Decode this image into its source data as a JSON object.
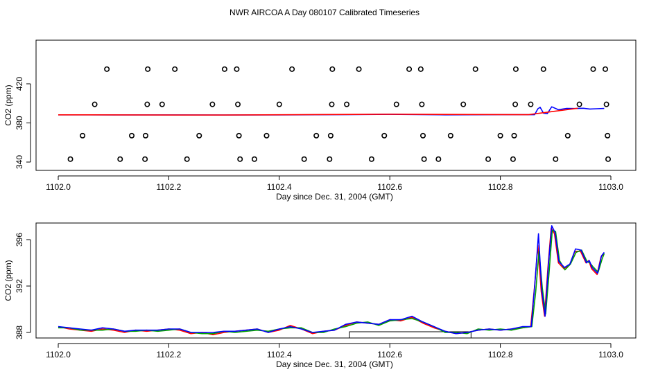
{
  "figure": {
    "title": "NWR AIRCOA A  Day 080107  Calibrated Timeseries"
  },
  "chart_data": [
    {
      "type": "scatter",
      "xlabel": "Day since Dec. 31, 2004 (GMT)",
      "ylabel": "CO2 (ppm)",
      "xlim": [
        1102.0,
        1103.0
      ],
      "ylim": [
        340,
        440
      ],
      "xticks": [
        1102.0,
        1102.2,
        1102.4,
        1102.6,
        1102.8,
        1103.0
      ],
      "xtick_labels": [
        "1102.0",
        "1102.2",
        "1102.4",
        "1102.6",
        "1102.8",
        "1103.0"
      ],
      "yticks": [
        340,
        380,
        420
      ],
      "ytick_labels": [
        "340",
        "380",
        "420"
      ],
      "grid": false,
      "legend": "none",
      "points_groups": [
        {
          "marker": "open-circle",
          "color": "#000000",
          "points": [
            [
              1102.088,
              435
            ],
            [
              1102.162,
              435
            ],
            [
              1102.211,
              435
            ],
            [
              1102.301,
              435
            ],
            [
              1102.323,
              435
            ],
            [
              1102.423,
              435
            ],
            [
              1102.496,
              435
            ],
            [
              1102.544,
              435
            ],
            [
              1102.635,
              435
            ],
            [
              1102.656,
              435
            ],
            [
              1102.755,
              435
            ],
            [
              1102.828,
              435
            ],
            [
              1102.878,
              435
            ],
            [
              1102.968,
              435
            ],
            [
              1102.99,
              435
            ],
            [
              1102.066,
              399
            ],
            [
              1102.161,
              399
            ],
            [
              1102.188,
              399
            ],
            [
              1102.279,
              399
            ],
            [
              1102.325,
              399
            ],
            [
              1102.4,
              399
            ],
            [
              1102.495,
              399
            ],
            [
              1102.522,
              399
            ],
            [
              1102.612,
              399
            ],
            [
              1102.658,
              399
            ],
            [
              1102.733,
              399
            ],
            [
              1102.827,
              399
            ],
            [
              1102.855,
              399
            ],
            [
              1102.943,
              399
            ],
            [
              1102.992,
              399
            ],
            [
              1102.044,
              367
            ],
            [
              1102.133,
              367
            ],
            [
              1102.158,
              367
            ],
            [
              1102.255,
              367
            ],
            [
              1102.327,
              367
            ],
            [
              1102.377,
              367
            ],
            [
              1102.467,
              367
            ],
            [
              1102.493,
              367
            ],
            [
              1102.59,
              367
            ],
            [
              1102.66,
              367
            ],
            [
              1102.71,
              367
            ],
            [
              1102.8,
              367
            ],
            [
              1102.825,
              367
            ],
            [
              1102.922,
              367
            ],
            [
              1102.994,
              367
            ],
            [
              1102.022,
              343
            ],
            [
              1102.112,
              343
            ],
            [
              1102.157,
              343
            ],
            [
              1102.233,
              343
            ],
            [
              1102.329,
              343
            ],
            [
              1102.355,
              343
            ],
            [
              1102.445,
              343
            ],
            [
              1102.491,
              343
            ],
            [
              1102.567,
              343
            ],
            [
              1102.662,
              343
            ],
            [
              1102.688,
              343
            ],
            [
              1102.778,
              343
            ],
            [
              1102.823,
              343
            ],
            [
              1102.9,
              343
            ],
            [
              1102.995,
              343
            ]
          ]
        }
      ],
      "series": [
        {
          "color": "#0000ff",
          "x": [
            1102.0,
            1102.1,
            1102.2,
            1102.3,
            1102.4,
            1102.5,
            1102.6,
            1102.7,
            1102.8,
            1102.862,
            1102.868,
            1102.872,
            1102.878,
            1102.885,
            1102.893,
            1102.905,
            1102.92,
            1102.935,
            1102.95,
            1102.962,
            1102.975,
            1102.988
          ],
          "y": [
            388.3,
            388.2,
            388.2,
            388.1,
            388.2,
            388.4,
            388.8,
            388.3,
            388.4,
            388.4,
            394.5,
            396.0,
            390.0,
            389.5,
            396.5,
            393.5,
            394.8,
            394.7,
            395.0,
            394.2,
            394.5,
            394.8
          ]
        },
        {
          "color": "#ff0000",
          "x": [
            1102.0,
            1102.3,
            1102.6,
            1102.85,
            1102.94
          ],
          "y": [
            388.3,
            388.1,
            388.9,
            388.4,
            395.0
          ]
        }
      ]
    },
    {
      "type": "line",
      "xlabel": "Day since Dec. 31, 2004 (GMT)",
      "ylabel": "CO2 (ppm)",
      "xlim": [
        1102.0,
        1103.0
      ],
      "ylim": [
        387.5,
        397.5
      ],
      "xticks": [
        1102.0,
        1102.2,
        1102.4,
        1102.6,
        1102.8,
        1103.0
      ],
      "xtick_labels": [
        "1102.0",
        "1102.2",
        "1102.4",
        "1102.6",
        "1102.8",
        "1103.0"
      ],
      "yticks": [
        388,
        392,
        396
      ],
      "ytick_labels": [
        "388",
        "392",
        "396"
      ],
      "grid": false,
      "legend": "none",
      "bracket": {
        "x0": 1102.527,
        "x1": 1102.747,
        "y": 387.55,
        "h": 0.1
      },
      "series": [
        {
          "color": "#ff0000",
          "x": [
            1102.0,
            1102.02,
            1102.04,
            1102.06,
            1102.08,
            1102.1,
            1102.12,
            1102.14,
            1102.16,
            1102.18,
            1102.2,
            1102.22,
            1102.24,
            1102.26,
            1102.28,
            1102.3,
            1102.32,
            1102.34,
            1102.36,
            1102.38,
            1102.4,
            1102.42,
            1102.44,
            1102.46,
            1102.48,
            1102.5,
            1102.52,
            1102.54,
            1102.56,
            1102.58,
            1102.6,
            1102.62,
            1102.64,
            1102.66,
            1102.68,
            1102.7,
            1102.72,
            1102.74,
            1102.76,
            1102.78,
            1102.8,
            1102.82,
            1102.84,
            1102.855,
            1102.862,
            1102.868,
            1102.874,
            1102.88,
            1102.886,
            1102.892,
            1102.898,
            1102.905,
            1102.915,
            1102.925,
            1102.935,
            1102.945,
            1102.955,
            1102.96,
            1102.965,
            1102.975,
            1102.982,
            1102.988
          ],
          "y": [
            388.5,
            388.3,
            388.2,
            388.1,
            388.3,
            388.2,
            388.0,
            388.2,
            388.1,
            388.2,
            388.3,
            388.2,
            387.9,
            388.0,
            387.8,
            388.0,
            388.1,
            388.2,
            388.3,
            388.0,
            388.2,
            388.6,
            388.3,
            387.9,
            388.1,
            388.2,
            388.6,
            388.9,
            388.8,
            388.7,
            389.1,
            389.0,
            389.3,
            388.8,
            388.4,
            388.1,
            387.9,
            388.0,
            388.2,
            388.3,
            388.2,
            388.3,
            388.4,
            388.5,
            392.0,
            395.5,
            391.5,
            389.4,
            393.5,
            397.0,
            396.5,
            394.0,
            393.5,
            393.8,
            395.0,
            395.0,
            394.0,
            394.2,
            393.5,
            393.0,
            394.5,
            394.8
          ]
        },
        {
          "color": "#00a000",
          "x": [
            1102.0,
            1102.02,
            1102.04,
            1102.06,
            1102.08,
            1102.1,
            1102.12,
            1102.14,
            1102.16,
            1102.18,
            1102.2,
            1102.22,
            1102.24,
            1102.26,
            1102.28,
            1102.3,
            1102.32,
            1102.34,
            1102.36,
            1102.38,
            1102.4,
            1102.42,
            1102.44,
            1102.46,
            1102.48,
            1102.5,
            1102.52,
            1102.54,
            1102.56,
            1102.58,
            1102.6,
            1102.62,
            1102.64,
            1102.66,
            1102.68,
            1102.7,
            1102.72,
            1102.74,
            1102.76,
            1102.78,
            1102.8,
            1102.82,
            1102.84,
            1102.857,
            1102.864,
            1102.87,
            1102.876,
            1102.882,
            1102.888,
            1102.894,
            1102.9,
            1102.907,
            1102.917,
            1102.927,
            1102.937,
            1102.947,
            1102.957,
            1102.962,
            1102.967,
            1102.977,
            1102.984,
            1102.988
          ],
          "y": [
            388.4,
            388.4,
            388.2,
            388.2,
            388.2,
            388.3,
            388.1,
            388.1,
            388.2,
            388.1,
            388.2,
            388.3,
            388.0,
            387.9,
            387.9,
            388.1,
            388.0,
            388.1,
            388.2,
            388.1,
            388.3,
            388.4,
            388.4,
            388.0,
            388.0,
            388.3,
            388.5,
            388.8,
            388.9,
            388.6,
            389.0,
            389.1,
            389.2,
            388.9,
            388.5,
            388.0,
            388.0,
            387.9,
            388.3,
            388.2,
            388.3,
            388.2,
            388.4,
            388.5,
            391.5,
            395.0,
            391.8,
            389.6,
            393.0,
            396.8,
            396.7,
            394.2,
            393.4,
            393.9,
            394.9,
            395.1,
            394.1,
            394.0,
            393.7,
            393.2,
            394.3,
            394.8
          ]
        },
        {
          "color": "#0000ff",
          "x": [
            1102.0,
            1102.02,
            1102.04,
            1102.06,
            1102.08,
            1102.1,
            1102.12,
            1102.14,
            1102.16,
            1102.18,
            1102.2,
            1102.22,
            1102.24,
            1102.26,
            1102.28,
            1102.3,
            1102.32,
            1102.34,
            1102.36,
            1102.38,
            1102.4,
            1102.42,
            1102.44,
            1102.46,
            1102.48,
            1102.5,
            1102.52,
            1102.54,
            1102.56,
            1102.58,
            1102.6,
            1102.62,
            1102.64,
            1102.66,
            1102.68,
            1102.7,
            1102.72,
            1102.74,
            1102.76,
            1102.78,
            1102.8,
            1102.82,
            1102.84,
            1102.856,
            1102.863,
            1102.869,
            1102.875,
            1102.881,
            1102.887,
            1102.893,
            1102.899,
            1102.906,
            1102.916,
            1102.926,
            1102.936,
            1102.946,
            1102.956,
            1102.961,
            1102.966,
            1102.976,
            1102.983,
            1102.988
          ],
          "y": [
            388.5,
            388.4,
            388.3,
            388.2,
            388.4,
            388.3,
            388.1,
            388.2,
            388.2,
            388.2,
            388.3,
            388.3,
            388.0,
            388.0,
            388.0,
            388.1,
            388.1,
            388.2,
            388.3,
            388.0,
            388.3,
            388.5,
            388.3,
            388.0,
            388.1,
            388.2,
            388.7,
            388.9,
            388.8,
            388.7,
            389.1,
            389.1,
            389.4,
            388.9,
            388.5,
            388.1,
            387.9,
            388.0,
            388.2,
            388.3,
            388.2,
            388.3,
            388.5,
            388.5,
            392.5,
            396.5,
            391.6,
            389.4,
            393.8,
            397.2,
            396.6,
            394.1,
            393.6,
            393.9,
            395.2,
            395.1,
            394.0,
            394.2,
            393.6,
            393.1,
            394.6,
            394.9
          ]
        }
      ]
    }
  ]
}
